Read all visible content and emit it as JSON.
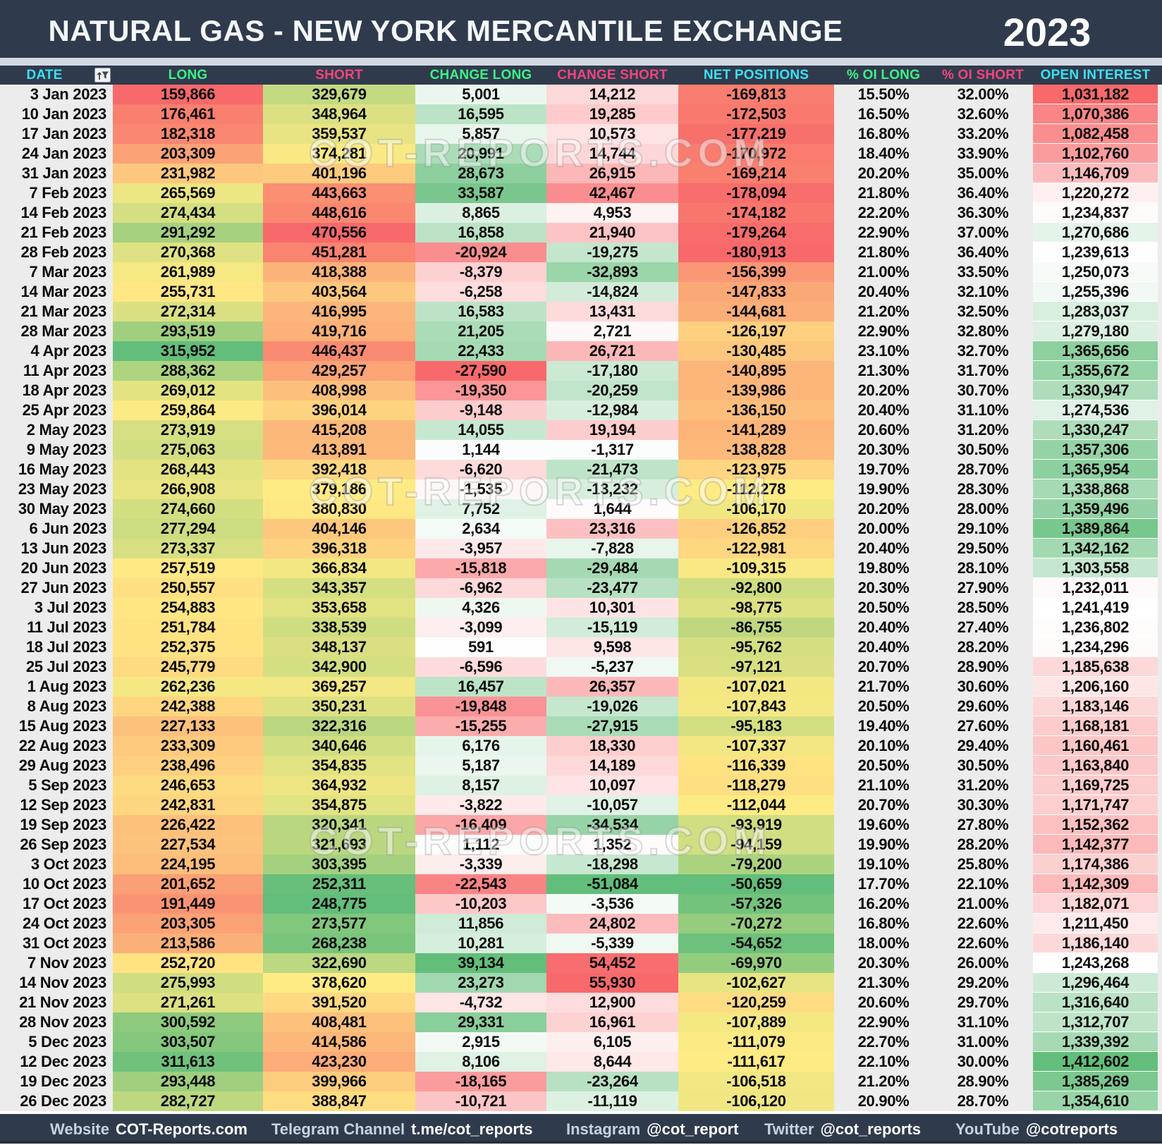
{
  "header": {
    "title": "NATURAL GAS - NEW YORK MERCANTILE EXCHANGE",
    "year": "2023"
  },
  "columns": [
    {
      "label": "DATE",
      "color": "#3BE0F2"
    },
    {
      "label": "LONG",
      "color": "#3DF287"
    },
    {
      "label": "SHORT",
      "color": "#F5437E"
    },
    {
      "label": "CHANGE LONG",
      "color": "#3DF287"
    },
    {
      "label": "CHANGE SHORT",
      "color": "#F5437E"
    },
    {
      "label": "NET POSITIONS",
      "color": "#3BE0F2"
    },
    {
      "label": "% OI LONG",
      "color": "#3DF287"
    },
    {
      "label": "% OI SHORT",
      "color": "#F5437E"
    },
    {
      "label": "OPEN INTEREST",
      "color": "#3BE0F2"
    }
  ],
  "icons": {
    "filter": "filter-funnel-icon"
  },
  "palette": {
    "navy": "#2F3B4C",
    "red": "#F8696B",
    "yellow": "#FFEB84",
    "green": "#63BE7B",
    "white": "#FFFFFF",
    "cell_gray": "#ECECEC"
  },
  "watermark": {
    "text": "COT-REPORTS.COM"
  },
  "rows": [
    [
      "3 Jan 2023",
      "159,866",
      "329,679",
      "5,001",
      "14,212",
      "-169,813",
      "15.50%",
      "32.00%",
      "1,031,182"
    ],
    [
      "10 Jan 2023",
      "176,461",
      "348,964",
      "16,595",
      "19,285",
      "-172,503",
      "16.50%",
      "32.60%",
      "1,070,386"
    ],
    [
      "17 Jan 2023",
      "182,318",
      "359,537",
      "5,857",
      "10,573",
      "-177,219",
      "16.80%",
      "33.20%",
      "1,082,458"
    ],
    [
      "24 Jan 2023",
      "203,309",
      "374,281",
      "20,991",
      "14,744",
      "-170,972",
      "18.40%",
      "33.90%",
      "1,102,760"
    ],
    [
      "31 Jan 2023",
      "231,982",
      "401,196",
      "28,673",
      "26,915",
      "-169,214",
      "20.20%",
      "35.00%",
      "1,146,709"
    ],
    [
      "7 Feb 2023",
      "265,569",
      "443,663",
      "33,587",
      "42,467",
      "-178,094",
      "21.80%",
      "36.40%",
      "1,220,272"
    ],
    [
      "14 Feb 2023",
      "274,434",
      "448,616",
      "8,865",
      "4,953",
      "-174,182",
      "22.20%",
      "36.30%",
      "1,234,837"
    ],
    [
      "21 Feb 2023",
      "291,292",
      "470,556",
      "16,858",
      "21,940",
      "-179,264",
      "22.90%",
      "37.00%",
      "1,270,686"
    ],
    [
      "28 Feb 2023",
      "270,368",
      "451,281",
      "-20,924",
      "-19,275",
      "-180,913",
      "21.80%",
      "36.40%",
      "1,239,613"
    ],
    [
      "7 Mar 2023",
      "261,989",
      "418,388",
      "-8,379",
      "-32,893",
      "-156,399",
      "21.00%",
      "33.50%",
      "1,250,073"
    ],
    [
      "14 Mar 2023",
      "255,731",
      "403,564",
      "-6,258",
      "-14,824",
      "-147,833",
      "20.40%",
      "32.10%",
      "1,255,396"
    ],
    [
      "21 Mar 2023",
      "272,314",
      "416,995",
      "16,583",
      "13,431",
      "-144,681",
      "21.20%",
      "32.50%",
      "1,283,037"
    ],
    [
      "28 Mar 2023",
      "293,519",
      "419,716",
      "21,205",
      "2,721",
      "-126,197",
      "22.90%",
      "32.80%",
      "1,279,180"
    ],
    [
      "4 Apr 2023",
      "315,952",
      "446,437",
      "22,433",
      "26,721",
      "-130,485",
      "23.10%",
      "32.70%",
      "1,365,656"
    ],
    [
      "11 Apr 2023",
      "288,362",
      "429,257",
      "-27,590",
      "-17,180",
      "-140,895",
      "21.30%",
      "31.70%",
      "1,355,672"
    ],
    [
      "18 Apr 2023",
      "269,012",
      "408,998",
      "-19,350",
      "-20,259",
      "-139,986",
      "20.20%",
      "30.70%",
      "1,330,947"
    ],
    [
      "25 Apr 2023",
      "259,864",
      "396,014",
      "-9,148",
      "-12,984",
      "-136,150",
      "20.40%",
      "31.10%",
      "1,274,536"
    ],
    [
      "2 May 2023",
      "273,919",
      "415,208",
      "14,055",
      "19,194",
      "-141,289",
      "20.60%",
      "31.20%",
      "1,330,247"
    ],
    [
      "9 May 2023",
      "275,063",
      "413,891",
      "1,144",
      "-1,317",
      "-138,828",
      "20.30%",
      "30.50%",
      "1,357,306"
    ],
    [
      "16 May 2023",
      "268,443",
      "392,418",
      "-6,620",
      "-21,473",
      "-123,975",
      "19.70%",
      "28.70%",
      "1,365,954"
    ],
    [
      "23 May 2023",
      "266,908",
      "379,186",
      "-1,535",
      "-13,232",
      "-112,278",
      "19.90%",
      "28.30%",
      "1,338,868"
    ],
    [
      "30 May 2023",
      "274,660",
      "380,830",
      "7,752",
      "1,644",
      "-106,170",
      "20.20%",
      "28.00%",
      "1,359,496"
    ],
    [
      "6 Jun 2023",
      "277,294",
      "404,146",
      "2,634",
      "23,316",
      "-126,852",
      "20.00%",
      "29.10%",
      "1,389,864"
    ],
    [
      "13 Jun 2023",
      "273,337",
      "396,318",
      "-3,957",
      "-7,828",
      "-122,981",
      "20.40%",
      "29.50%",
      "1,342,162"
    ],
    [
      "20 Jun 2023",
      "257,519",
      "366,834",
      "-15,818",
      "-29,484",
      "-109,315",
      "19.80%",
      "28.10%",
      "1,303,558"
    ],
    [
      "27 Jun 2023",
      "250,557",
      "343,357",
      "-6,962",
      "-23,477",
      "-92,800",
      "20.30%",
      "27.90%",
      "1,232,011"
    ],
    [
      "3 Jul 2023",
      "254,883",
      "353,658",
      "4,326",
      "10,301",
      "-98,775",
      "20.50%",
      "28.50%",
      "1,241,419"
    ],
    [
      "11 Jul 2023",
      "251,784",
      "338,539",
      "-3,099",
      "-15,119",
      "-86,755",
      "20.40%",
      "27.40%",
      "1,236,802"
    ],
    [
      "18 Jul 2023",
      "252,375",
      "348,137",
      "591",
      "9,598",
      "-95,762",
      "20.40%",
      "28.20%",
      "1,234,296"
    ],
    [
      "25 Jul 2023",
      "245,779",
      "342,900",
      "-6,596",
      "-5,237",
      "-97,121",
      "20.70%",
      "28.90%",
      "1,185,638"
    ],
    [
      "1 Aug 2023",
      "262,236",
      "369,257",
      "16,457",
      "26,357",
      "-107,021",
      "21.70%",
      "30.60%",
      "1,206,160"
    ],
    [
      "8 Aug 2023",
      "242,388",
      "350,231",
      "-19,848",
      "-19,026",
      "-107,843",
      "20.50%",
      "29.60%",
      "1,183,146"
    ],
    [
      "15 Aug 2023",
      "227,133",
      "322,316",
      "-15,255",
      "-27,915",
      "-95,183",
      "19.40%",
      "27.60%",
      "1,168,181"
    ],
    [
      "22 Aug 2023",
      "233,309",
      "340,646",
      "6,176",
      "18,330",
      "-107,337",
      "20.10%",
      "29.40%",
      "1,160,461"
    ],
    [
      "29 Aug 2023",
      "238,496",
      "354,835",
      "5,187",
      "14,189",
      "-116,339",
      "20.50%",
      "30.50%",
      "1,163,840"
    ],
    [
      "5 Sep 2023",
      "246,653",
      "364,932",
      "8,157",
      "10,097",
      "-118,279",
      "21.10%",
      "31.20%",
      "1,169,725"
    ],
    [
      "12 Sep 2023",
      "242,831",
      "354,875",
      "-3,822",
      "-10,057",
      "-112,044",
      "20.70%",
      "30.30%",
      "1,171,747"
    ],
    [
      "19 Sep 2023",
      "226,422",
      "320,341",
      "-16,409",
      "-34,534",
      "-93,919",
      "19.60%",
      "27.80%",
      "1,152,362"
    ],
    [
      "26 Sep 2023",
      "227,534",
      "321,693",
      "1,112",
      "1,352",
      "-94,159",
      "19.90%",
      "28.20%",
      "1,142,377"
    ],
    [
      "3 Oct 2023",
      "224,195",
      "303,395",
      "-3,339",
      "-18,298",
      "-79,200",
      "19.10%",
      "25.80%",
      "1,174,386"
    ],
    [
      "10 Oct 2023",
      "201,652",
      "252,311",
      "-22,543",
      "-51,084",
      "-50,659",
      "17.70%",
      "22.10%",
      "1,142,309"
    ],
    [
      "17 Oct 2023",
      "191,449",
      "248,775",
      "-10,203",
      "-3,536",
      "-57,326",
      "16.20%",
      "21.00%",
      "1,182,071"
    ],
    [
      "24 Oct 2023",
      "203,305",
      "273,577",
      "11,856",
      "24,802",
      "-70,272",
      "16.80%",
      "22.60%",
      "1,211,450"
    ],
    [
      "31 Oct 2023",
      "213,586",
      "268,238",
      "10,281",
      "-5,339",
      "-54,652",
      "18.00%",
      "22.60%",
      "1,186,140"
    ],
    [
      "7 Nov 2023",
      "252,720",
      "322,690",
      "39,134",
      "54,452",
      "-69,970",
      "20.30%",
      "26.00%",
      "1,243,268"
    ],
    [
      "14 Nov 2023",
      "275,993",
      "378,620",
      "23,273",
      "55,930",
      "-102,627",
      "21.30%",
      "29.20%",
      "1,296,464"
    ],
    [
      "21 Nov 2023",
      "271,261",
      "391,520",
      "-4,732",
      "12,900",
      "-120,259",
      "20.60%",
      "29.70%",
      "1,316,640"
    ],
    [
      "28 Nov 2023",
      "300,592",
      "408,481",
      "29,331",
      "16,961",
      "-107,889",
      "22.90%",
      "31.10%",
      "1,312,707"
    ],
    [
      "5 Dec 2023",
      "303,507",
      "414,586",
      "2,915",
      "6,105",
      "-111,079",
      "22.70%",
      "31.00%",
      "1,339,392"
    ],
    [
      "12 Dec 2023",
      "311,613",
      "423,230",
      "8,106",
      "8,644",
      "-111,617",
      "22.10%",
      "30.00%",
      "1,412,602"
    ],
    [
      "19 Dec 2023",
      "293,448",
      "399,966",
      "-18,165",
      "-23,264",
      "-106,518",
      "21.20%",
      "28.90%",
      "1,385,269"
    ],
    [
      "26 Dec 2023",
      "282,727",
      "388,847",
      "-10,721",
      "-11,119",
      "-106,120",
      "20.90%",
      "28.70%",
      "1,354,610"
    ]
  ],
  "footer": {
    "items": [
      {
        "label": "Website",
        "value": "COT-Reports.com"
      },
      {
        "label": "Telegram Channel",
        "value": "t.me/cot_reports"
      },
      {
        "label": "Instagram",
        "value": "@cot_report"
      },
      {
        "label": "Twitter",
        "value": "@cot_reports"
      },
      {
        "label": "YouTube",
        "value": "@cotreports"
      }
    ]
  }
}
